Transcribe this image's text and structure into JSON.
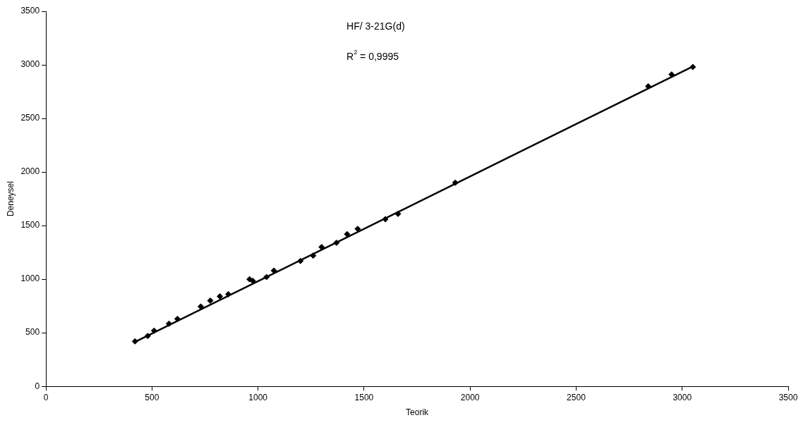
{
  "chart_data": {
    "type": "scatter",
    "xlabel": "Teorik",
    "ylabel": "Deneysel",
    "annotations": [
      "HF/ 3-21G(d)",
      "R$^{2}$ = 0,9995"
    ],
    "series": [
      {
        "color": "#000000",
        "marker": "diamond",
        "x": [
          420,
          480,
          510,
          580,
          620,
          730,
          775,
          820,
          860,
          960,
          975,
          1040,
          1075,
          1200,
          1260,
          1300,
          1370,
          1420,
          1470,
          1600,
          1660,
          1930,
          2840,
          2950,
          3050
        ],
        "values": [
          420,
          470,
          520,
          585,
          630,
          745,
          800,
          840,
          860,
          1000,
          985,
          1020,
          1080,
          1170,
          1220,
          1300,
          1340,
          1420,
          1470,
          1560,
          1610,
          1900,
          2800,
          2910,
          2980
        ]
      },
      {
        "type": "line",
        "color": "#000000",
        "marker": "none",
        "x": [
          420,
          3050
        ],
        "values": [
          415,
          2985
        ]
      }
    ],
    "xlim": [
      0,
      3500
    ],
    "xticks": [
      0,
      500,
      1000,
      1500,
      2000,
      2500,
      3000,
      3500
    ],
    "ylim": [
      0,
      3500
    ],
    "yticks": [
      0,
      500,
      1000,
      1500,
      2000,
      2500,
      3000,
      3500
    ],
    "grid": false,
    "legend": false
  }
}
